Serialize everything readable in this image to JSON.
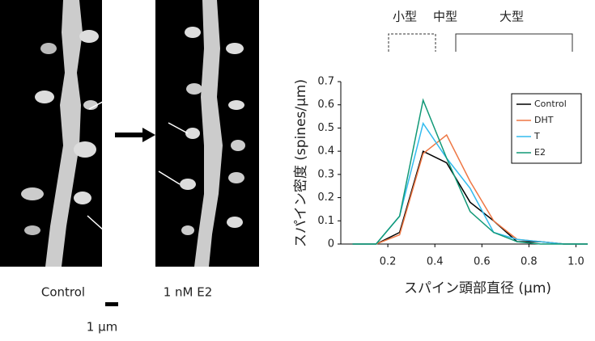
{
  "panels": {
    "left_label": "Control",
    "right_label": "1 nM E2",
    "scale_label": "1 μm"
  },
  "size_classes": {
    "small": "小型",
    "medium": "中型",
    "large": "大型"
  },
  "chart_data": {
    "type": "line",
    "x_label": "スパイン頭部直径 (μm)",
    "y_label": "スパイン密度 (spines/μm)",
    "x": [
      0.05,
      0.15,
      0.25,
      0.35,
      0.45,
      0.55,
      0.65,
      0.75,
      0.85,
      0.95,
      1.05
    ],
    "series": [
      {
        "name": "Control",
        "color": "#000000",
        "values": [
          0,
          0,
          0.05,
          0.4,
          0.35,
          0.18,
          0.1,
          0.01,
          0.01,
          0,
          0
        ]
      },
      {
        "name": "DHT",
        "color": "#ee7744",
        "values": [
          0,
          0,
          0.04,
          0.39,
          0.47,
          0.27,
          0.1,
          0.02,
          0.01,
          0,
          0
        ]
      },
      {
        "name": "T",
        "color": "#33bbee",
        "values": [
          0,
          0,
          0.12,
          0.52,
          0.37,
          0.24,
          0.05,
          0.02,
          0.01,
          0,
          0
        ]
      },
      {
        "name": "E2",
        "color": "#119977",
        "values": [
          0,
          0,
          0.12,
          0.62,
          0.37,
          0.14,
          0.05,
          0.01,
          0,
          0,
          0
        ]
      }
    ],
    "xlim": [
      0,
      1.05
    ],
    "xticks": [
      0.2,
      0.4,
      0.6,
      0.8,
      {
        "value": 1,
        "label": "1.0"
      }
    ],
    "ylim": [
      0,
      0.7
    ],
    "yticks": [
      0,
      0.1,
      0.2,
      0.3,
      0.4,
      0.5,
      0.6,
      0.7
    ],
    "grid": false,
    "legend": "upper right"
  }
}
